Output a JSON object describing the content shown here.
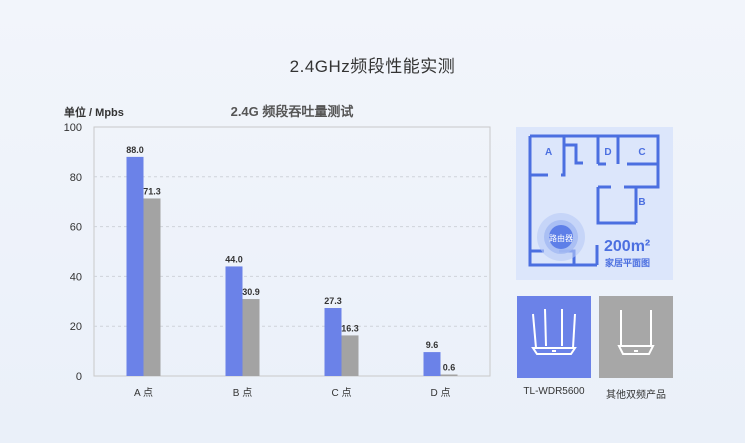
{
  "page": {
    "title": "2.4GHz频段性能实测"
  },
  "chart_data": {
    "type": "bar",
    "title": "2.4G 频段吞吐量测试",
    "ylabel": "单位 /  Mpbs",
    "categories": [
      "A 点",
      "B 点",
      "C 点",
      "D 点"
    ],
    "series": [
      {
        "values": [
          88.0,
          44.0,
          27.3,
          9.6
        ],
        "color": "#6b82e8"
      },
      {
        "values": [
          71.3,
          30.9,
          16.3,
          0.6
        ],
        "color": "#a3a3a3"
      }
    ],
    "ylim": [
      0,
      100
    ],
    "yticks": [
      0,
      20,
      40,
      60,
      80,
      100
    ],
    "grid": true
  },
  "floor_plan": {
    "rooms": [
      "A",
      "D",
      "C",
      "B"
    ],
    "router_label": "路由器",
    "area": "200m²",
    "caption": "家居平面图",
    "accent": "#4b6fe0"
  },
  "products": [
    {
      "label": "TL-WDR5600"
    },
    {
      "label": "其他双频产品"
    }
  ]
}
